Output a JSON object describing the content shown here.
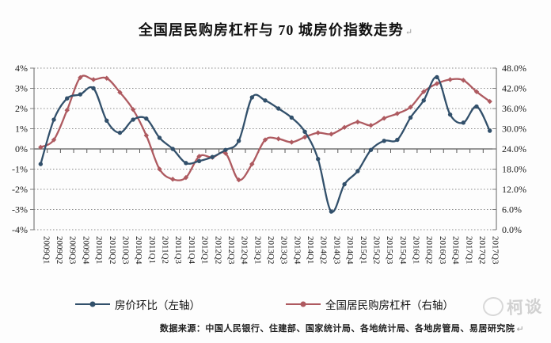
{
  "title": "全国居民购房杠杆与 70 城房价指数走势",
  "annotations": {
    "title_end_mark": "↵",
    "footer_end_mark": "↵",
    "watermark": "柯谈"
  },
  "footer": "数据来源：中国人民银行、住建部、国家统计局、各地统计局、各地房管局、易居研究院",
  "chart_data": {
    "type": "line",
    "title": "全国居民购房杠杆与 70 城房价指数走势",
    "legend_position": "bottom",
    "grid": "horizontal-dotted",
    "categories": [
      "2009Q1",
      "2009Q2",
      "2009Q3",
      "2009Q4",
      "2010Q1",
      "2010Q2",
      "2010Q3",
      "2010Q4",
      "2011Q1",
      "2011Q2",
      "2011Q3",
      "2011Q4",
      "2012Q1",
      "2012Q2",
      "2012Q3",
      "2012Q4",
      "2013Q1",
      "2013Q2",
      "2013Q3",
      "2013Q4",
      "2014Q1",
      "2014Q2",
      "2014Q3",
      "2014Q4",
      "2015Q1",
      "2015Q2",
      "2015Q3",
      "2015Q4",
      "2016Q1",
      "2016Q2",
      "2016Q3",
      "2016Q4",
      "2017Q1",
      "2017Q2",
      "2017Q3"
    ],
    "left_axis": {
      "min": -4,
      "max": 4,
      "step": 1,
      "unit": "%",
      "tick_values": [
        4,
        3,
        2,
        1,
        0,
        -1,
        -2,
        -3,
        -4
      ],
      "tick_labels": [
        "4%",
        "3%",
        "2%",
        "1%",
        "0%",
        "-1%",
        "-2%",
        "-3%",
        "-4%"
      ]
    },
    "right_axis": {
      "min": 0,
      "max": 48,
      "step": 6,
      "unit": "%",
      "tick_values": [
        48,
        42,
        36,
        30,
        24,
        18,
        12,
        6,
        0
      ],
      "tick_labels": [
        "48.0%",
        "42.0%",
        "36.0%",
        "30.0%",
        "24.0%",
        "18.0%",
        "12.0%",
        "6.0%",
        "0.0%"
      ]
    },
    "series": [
      {
        "name": "房价环比（左轴）",
        "axis": "left",
        "color": "#32506B",
        "marker": "circle",
        "values": [
          -0.75,
          1.45,
          2.5,
          2.7,
          3.0,
          1.4,
          0.8,
          1.45,
          1.5,
          0.55,
          0.0,
          -0.7,
          -0.6,
          -0.4,
          -0.05,
          0.4,
          2.55,
          2.4,
          2.0,
          1.55,
          0.85,
          -0.5,
          -3.1,
          -1.75,
          -1.1,
          -0.05,
          0.4,
          0.45,
          1.55,
          2.4,
          3.55,
          1.7,
          1.3,
          2.1,
          0.9
        ]
      },
      {
        "name": "全国居民购房杠杆（右轴）",
        "axis": "right",
        "color": "#AE5A60",
        "marker": "diamond",
        "values": [
          24.5,
          26.7,
          35.5,
          45.2,
          44.6,
          45.0,
          40.8,
          35.7,
          28.0,
          18.0,
          15.0,
          15.5,
          21.8,
          21.5,
          22.7,
          14.8,
          19.5,
          26.7,
          27.0,
          26.0,
          27.5,
          28.8,
          28.4,
          30.4,
          32.0,
          31.0,
          33.1,
          34.5,
          36.4,
          41.0,
          43.4,
          44.6,
          44.4,
          41.0,
          38.1
        ]
      }
    ],
    "style": {
      "grid_color": "#8a8a8a",
      "zero_axis_color": "#595959",
      "axis_line_color": "#7d7d7d",
      "label_color": "#1a1a1a"
    }
  }
}
